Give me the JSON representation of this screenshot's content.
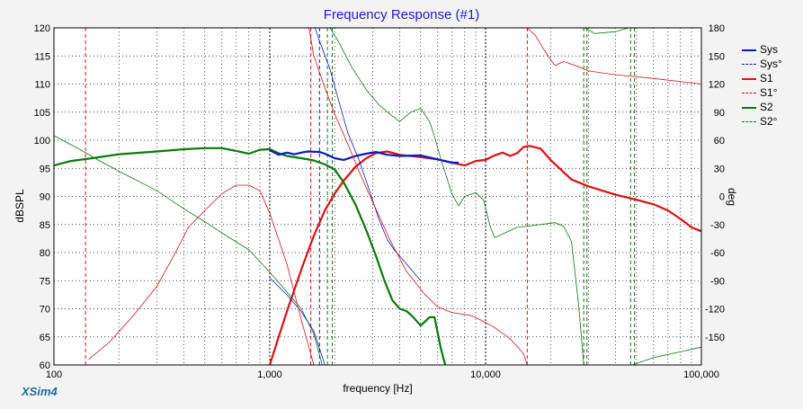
{
  "window": {
    "app_name": "XSim4"
  },
  "chart_data": {
    "type": "line",
    "title": "Frequency Response (#1)",
    "xlabel": "frequency [Hz]",
    "ylabel": "dBSPL",
    "y2label": "deg",
    "x_scale": "log",
    "xlim": [
      100,
      100000
    ],
    "ylim": [
      60,
      120
    ],
    "y2lim": [
      -180,
      180
    ],
    "grid": true,
    "legend_position": "top-right",
    "x_ticks": [
      "100",
      "1,000",
      "10,000",
      "100,000"
    ],
    "y_ticks": [
      "60",
      "65",
      "70",
      "75",
      "80",
      "85",
      "90",
      "95",
      "100",
      "105",
      "110",
      "115",
      "120"
    ],
    "y2_ticks": [
      "-150",
      "-120",
      "-90",
      "-60",
      "-30",
      "0",
      "30",
      "60",
      "90",
      "120",
      "150",
      "180"
    ],
    "colors": {
      "blue": "#0a1ac8",
      "red": "#dd1010",
      "green": "#0a7a0a",
      "grid": "#000000",
      "bg": "#ffffff"
    },
    "legend": [
      {
        "name": "Sys",
        "style": "solid",
        "color": "#0a1ac8"
      },
      {
        "name": "Sys°",
        "style": "dashed",
        "color": "#0a1ac8"
      },
      {
        "name": "S1",
        "style": "solid",
        "color": "#dd1010"
      },
      {
        "name": "S1°",
        "style": "dashed",
        "color": "#dd1010"
      },
      {
        "name": "S2",
        "style": "solid",
        "color": "#0a7a0a"
      },
      {
        "name": "S2°",
        "style": "dashed",
        "color": "#0a7a0a"
      }
    ],
    "series": [
      {
        "name": "S2",
        "axis": "left",
        "color": "#0a7a0a",
        "width": 2.2,
        "points": [
          [
            100,
            95.5
          ],
          [
            120,
            96.3
          ],
          [
            150,
            96.8
          ],
          [
            200,
            97.5
          ],
          [
            300,
            98.0
          ],
          [
            400,
            98.4
          ],
          [
            500,
            98.6
          ],
          [
            600,
            98.6
          ],
          [
            700,
            98.1
          ],
          [
            800,
            97.6
          ],
          [
            900,
            98.3
          ],
          [
            1000,
            98.4
          ],
          [
            1100,
            97.7
          ],
          [
            1200,
            97.2
          ],
          [
            1400,
            96.8
          ],
          [
            1600,
            96.4
          ],
          [
            1800,
            95.7
          ],
          [
            2000,
            94.8
          ],
          [
            2200,
            92.5
          ],
          [
            2500,
            88.5
          ],
          [
            2800,
            84.0
          ],
          [
            3100,
            79.5
          ],
          [
            3400,
            75.0
          ],
          [
            3700,
            71.5
          ],
          [
            4000,
            70.0
          ],
          [
            4300,
            69.6
          ],
          [
            4600,
            68.6
          ],
          [
            5000,
            67.0
          ],
          [
            5500,
            68.5
          ],
          [
            5800,
            68.5
          ],
          [
            6200,
            63.0
          ],
          [
            6500,
            60.0
          ]
        ]
      },
      {
        "name": "S1",
        "axis": "left",
        "color": "#dd1010",
        "width": 2.2,
        "points": [
          [
            1000,
            60.0
          ],
          [
            1100,
            65.0
          ],
          [
            1200,
            69.5
          ],
          [
            1400,
            77.0
          ],
          [
            1600,
            83.0
          ],
          [
            1800,
            87.5
          ],
          [
            2000,
            90.5
          ],
          [
            2200,
            92.8
          ],
          [
            2500,
            95.3
          ],
          [
            2800,
            96.8
          ],
          [
            3100,
            97.7
          ],
          [
            3500,
            98.0
          ],
          [
            4000,
            97.4
          ],
          [
            5000,
            97.0
          ],
          [
            6000,
            96.6
          ],
          [
            7000,
            96.0
          ],
          [
            8000,
            95.5
          ],
          [
            9000,
            96.3
          ],
          [
            10000,
            96.5
          ],
          [
            11000,
            97.3
          ],
          [
            12000,
            97.8
          ],
          [
            13000,
            97.2
          ],
          [
            14000,
            97.7
          ],
          [
            15000,
            98.8
          ],
          [
            16000,
            99.0
          ],
          [
            18000,
            98.5
          ],
          [
            20000,
            96.5
          ],
          [
            25000,
            93.0
          ],
          [
            30000,
            91.8
          ],
          [
            40000,
            90.3
          ],
          [
            50000,
            89.4
          ],
          [
            60000,
            88.6
          ],
          [
            70000,
            87.5
          ],
          [
            80000,
            86.0
          ],
          [
            90000,
            84.5
          ],
          [
            100000,
            83.8
          ]
        ]
      },
      {
        "name": "Sys",
        "axis": "left",
        "color": "#0a1ac8",
        "width": 2.2,
        "points": [
          [
            1000,
            98.2
          ],
          [
            1100,
            97.4
          ],
          [
            1200,
            97.8
          ],
          [
            1300,
            97.5
          ],
          [
            1400,
            97.8
          ],
          [
            1500,
            98.0
          ],
          [
            1700,
            97.9
          ],
          [
            1800,
            97.6
          ],
          [
            2000,
            96.8
          ],
          [
            2200,
            96.5
          ],
          [
            2500,
            97.2
          ],
          [
            2800,
            97.6
          ],
          [
            3100,
            97.9
          ],
          [
            3500,
            97.4
          ],
          [
            4000,
            97.2
          ],
          [
            5000,
            97.3
          ],
          [
            6000,
            96.6
          ],
          [
            7000,
            96.0
          ],
          [
            7500,
            96.0
          ]
        ]
      },
      {
        "name": "S2 dB (thin)",
        "axis": "left",
        "color": "#0a7a0a",
        "width": 0.8,
        "points": [
          [
            100,
            100.8
          ],
          [
            130,
            98.5
          ],
          [
            160,
            96.5
          ],
          [
            200,
            94.5
          ],
          [
            300,
            91.0
          ],
          [
            400,
            87.8
          ],
          [
            500,
            85.5
          ],
          [
            600,
            83.5
          ],
          [
            800,
            80.5
          ],
          [
            1000,
            76.5
          ],
          [
            1200,
            73.0
          ],
          [
            1400,
            70.0
          ],
          [
            1600,
            65.5
          ],
          [
            1750,
            60.0
          ]
        ]
      },
      {
        "name": "Sys dB (thin)",
        "axis": "left",
        "color": "#0a1ac8",
        "width": 0.8,
        "points": [
          [
            1000,
            75.5
          ],
          [
            1200,
            72.5
          ],
          [
            1400,
            69.5
          ],
          [
            1600,
            66.0
          ],
          [
            1800,
            60.0
          ]
        ]
      },
      {
        "name": "S1 dB (thin)",
        "axis": "left",
        "color": "#dd1010",
        "width": 0.8,
        "points": [
          [
            145,
            61.0
          ],
          [
            180,
            64.0
          ],
          [
            230,
            68.5
          ],
          [
            300,
            74.0
          ],
          [
            360,
            79.5
          ],
          [
            420,
            84.5
          ],
          [
            500,
            87.5
          ],
          [
            600,
            90.5
          ],
          [
            700,
            92.0
          ],
          [
            800,
            92.0
          ],
          [
            900,
            91.0
          ],
          [
            1000,
            87.0
          ],
          [
            1200,
            78.0
          ],
          [
            1400,
            68.0
          ],
          [
            1600,
            60.0
          ]
        ]
      },
      {
        "name": "Sys° (phase)",
        "axis": "right",
        "color": "#0a1ac8",
        "width": 0.8,
        "points": [
          [
            1620,
            180
          ],
          [
            1700,
            166
          ],
          [
            1900,
            136
          ],
          [
            2100,
            100
          ],
          [
            2300,
            68
          ],
          [
            2600,
            38
          ],
          [
            2900,
            6
          ],
          [
            3200,
            -24
          ],
          [
            3500,
            -46
          ],
          [
            3800,
            -58
          ],
          [
            4300,
            -72
          ],
          [
            5000,
            -90
          ]
        ]
      },
      {
        "name": "S1° (phase)",
        "axis": "right",
        "color": "#dd1010",
        "width": 0.8,
        "points": [
          [
            1520,
            180
          ],
          [
            1600,
            150
          ],
          [
            1800,
            116
          ],
          [
            2000,
            88
          ],
          [
            2300,
            56
          ],
          [
            2600,
            26
          ],
          [
            3000,
            -6
          ],
          [
            3600,
            -46
          ],
          [
            4300,
            -80
          ],
          [
            5200,
            -104
          ],
          [
            6000,
            -118
          ],
          [
            7000,
            -124
          ],
          [
            8500,
            -127
          ],
          [
            9500,
            -132
          ],
          [
            11000,
            -140
          ],
          [
            13000,
            -152
          ],
          [
            15000,
            -168
          ],
          [
            15600,
            -180
          ]
        ]
      },
      {
        "name": "S1° (phase) wrap",
        "axis": "right",
        "color": "#dd1010",
        "width": 0.8,
        "points": [
          [
            15600,
            180
          ],
          [
            17000,
            172
          ],
          [
            18500,
            158
          ],
          [
            20000,
            146
          ],
          [
            21000,
            140
          ],
          [
            23000,
            144
          ],
          [
            26000,
            140
          ],
          [
            30000,
            134
          ],
          [
            40000,
            130
          ],
          [
            60000,
            126
          ],
          [
            100000,
            120
          ]
        ]
      },
      {
        "name": "S2° (phase)",
        "axis": "right",
        "color": "#0a7a0a",
        "width": 0.8,
        "points": [
          [
            1900,
            180
          ],
          [
            2050,
            168
          ],
          [
            2400,
            138
          ],
          [
            2800,
            114
          ],
          [
            3200,
            98
          ],
          [
            3600,
            88
          ],
          [
            4000,
            80
          ],
          [
            4500,
            90
          ],
          [
            5000,
            94
          ],
          [
            5500,
            80
          ],
          [
            5800,
            64
          ],
          [
            6200,
            40
          ],
          [
            7000,
            2
          ],
          [
            7500,
            -10
          ],
          [
            8000,
            0
          ],
          [
            9000,
            4
          ],
          [
            9800,
            -4
          ],
          [
            10500,
            -32
          ],
          [
            11000,
            -44
          ],
          [
            12000,
            -40
          ],
          [
            14000,
            -33
          ],
          [
            18000,
            -30
          ],
          [
            21000,
            -28
          ],
          [
            23000,
            -32
          ],
          [
            25000,
            -48
          ],
          [
            27000,
            -116
          ],
          [
            28500,
            -180
          ]
        ]
      },
      {
        "name": "S2° (phase) wrap",
        "axis": "right",
        "color": "#0a7a0a",
        "width": 0.8,
        "points": [
          [
            29000,
            180
          ],
          [
            32000,
            174
          ],
          [
            40000,
            176
          ],
          [
            46000,
            180
          ]
        ]
      },
      {
        "name": "S2° (phase) wrap 2",
        "axis": "right",
        "color": "#0a7a0a",
        "width": 0.8,
        "points": [
          [
            48000,
            -180
          ],
          [
            60000,
            -172
          ],
          [
            80000,
            -166
          ],
          [
            100000,
            -161
          ]
        ]
      }
    ],
    "markers": [
      {
        "axis": "x",
        "value": 140,
        "color": "#dd1010"
      },
      {
        "axis": "x",
        "value": 1550,
        "color": "#dd1010"
      },
      {
        "axis": "x",
        "value": 15600,
        "color": "#dd1010"
      },
      {
        "axis": "x",
        "value": 1700,
        "color": "#0a1ac8"
      },
      {
        "axis": "x",
        "value": 1850,
        "color": "#0a7a0a"
      },
      {
        "axis": "x",
        "value": 1950,
        "color": "#0a7a0a"
      },
      {
        "axis": "x",
        "value": 28500,
        "color": "#0a7a0a"
      },
      {
        "axis": "x",
        "value": 29500,
        "color": "#0a7a0a"
      },
      {
        "axis": "x",
        "value": 47000,
        "color": "#0a7a0a"
      },
      {
        "axis": "x",
        "value": 49000,
        "color": "#0a7a0a"
      }
    ]
  }
}
